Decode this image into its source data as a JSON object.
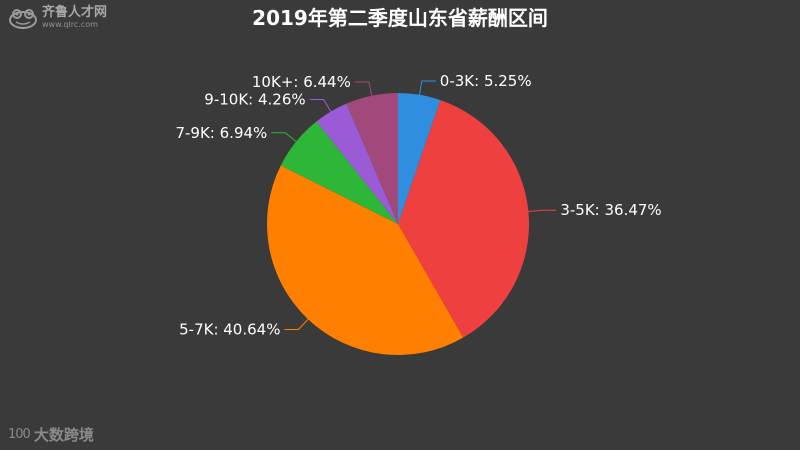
{
  "watermark_top": {
    "name": "齐鲁人才网",
    "url": "www.qlrc.com"
  },
  "watermark_bottom": {
    "mark": "100",
    "name": "大数跨境"
  },
  "chart_data": {
    "type": "pie",
    "title": "2019年第二季度山东省薪酬区间",
    "start_angle_deg": 0,
    "direction": "clockwise",
    "slices": [
      {
        "label": "0-3K: 5.25%",
        "category": "0-3K",
        "value": 5.25,
        "color": "#2f8ee0"
      },
      {
        "label": "3-5K: 36.47%",
        "category": "3-5K",
        "value": 36.47,
        "color": "#ef4040"
      },
      {
        "label": "5-7K: 40.64%",
        "category": "5-7K",
        "value": 40.64,
        "color": "#ff7f00"
      },
      {
        "label": "7-9K: 6.94%",
        "category": "7-9K",
        "value": 6.94,
        "color": "#2db637"
      },
      {
        "label": "9-10K: 4.26%",
        "category": "9-10K",
        "value": 4.26,
        "color": "#9c5bd6"
      },
      {
        "label": "10K+: 6.44%",
        "category": "10K+",
        "value": 6.44,
        "color": "#a0497a"
      }
    ],
    "legend": "none"
  }
}
